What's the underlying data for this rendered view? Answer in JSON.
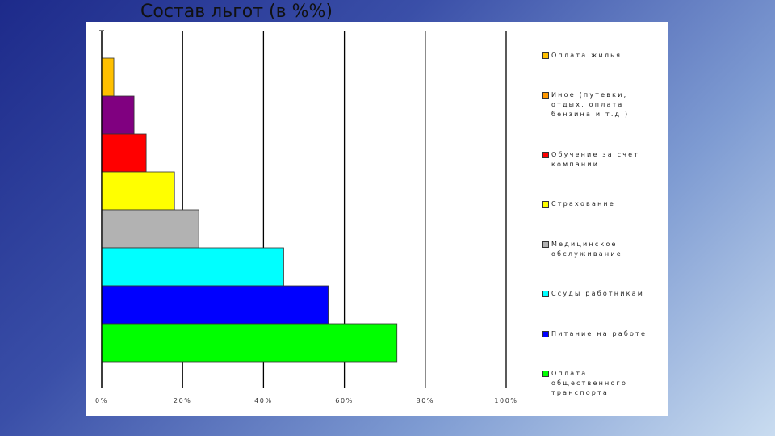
{
  "slide": {
    "title": "Состав льгот (в %%)"
  },
  "chart_data": {
    "type": "bar",
    "orientation": "horizontal",
    "title": "Состав льгот (в %%)",
    "xlabel": "",
    "ylabel": "",
    "xlim": [
      0,
      100
    ],
    "xticks": [
      "0%",
      "20%",
      "40%",
      "60%",
      "80%",
      "100%"
    ],
    "grid": true,
    "legend_position": "right",
    "categories": [
      "Оплата жилья",
      "Иное (путевки, отдых, оплата бензина и т.д.)",
      "Обучение за счет компании",
      "Страхование",
      "Медицинское обслуживание",
      "Ссуды работникам",
      "Питание на работе",
      "Оплата общественного транспорта"
    ],
    "values": [
      3,
      8,
      11,
      18,
      24,
      45,
      56,
      73
    ],
    "colors": [
      "#ffc000",
      "#800080",
      "#ff0000",
      "#ffff00",
      "#b2b2b2",
      "#00ffff",
      "#0000ff",
      "#00ff00"
    ],
    "legend_swatch_colors": [
      "#ffc000",
      "#ff9900",
      "#ff0000",
      "#ffff00",
      "#b2b2b2",
      "#00ffff",
      "#0000ff",
      "#00ff00"
    ]
  }
}
